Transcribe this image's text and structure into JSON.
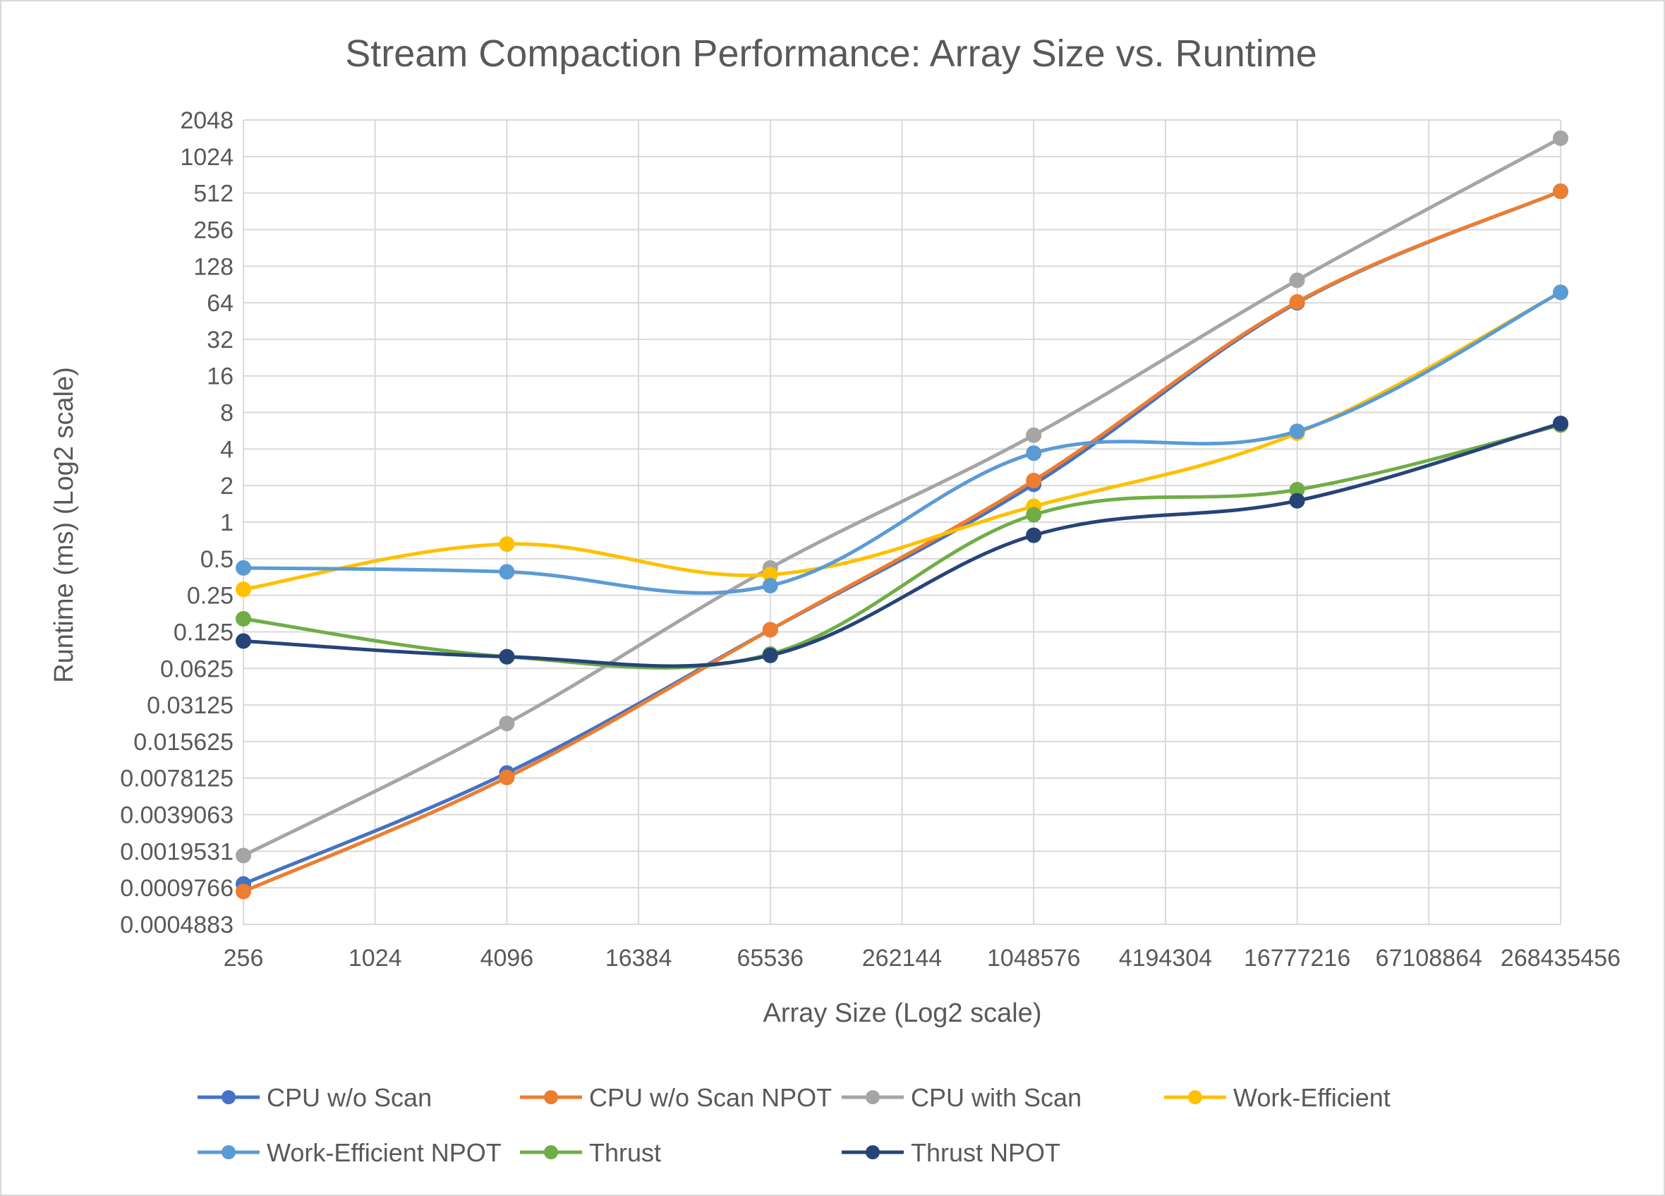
{
  "chart_data": {
    "type": "line",
    "title": "Stream Compaction Performance: Array Size vs. Runtime",
    "xlabel": "Array Size (Log2 scale)",
    "ylabel": "Runtime (ms) (Log2 scale)",
    "x_scale": "log2",
    "y_scale": "log2",
    "x_ticks": [
      "256",
      "1024",
      "4096",
      "16384",
      "65536",
      "262144",
      "1048576",
      "4194304",
      "16777216",
      "67108864",
      "268435456"
    ],
    "y_ticks": [
      "0.0004883",
      "0.0009766",
      "0.0019531",
      "0.0039063",
      "0.0078125",
      "0.015625",
      "0.03125",
      "0.0625",
      "0.125",
      "0.25",
      "0.5",
      "1",
      "2",
      "4",
      "8",
      "16",
      "32",
      "64",
      "128",
      "256",
      "512",
      "1024",
      "2048"
    ],
    "xlim": [
      256,
      268435456
    ],
    "ylim": [
      0.00048828125,
      2048
    ],
    "grid": true,
    "legend_position": "bottom",
    "x": [
      256,
      4096,
      65536,
      1048576,
      16777216,
      268435456
    ],
    "series": [
      {
        "name": "CPU w/o Scan",
        "color": "#4472C4",
        "values": [
          0.00105,
          0.0086,
          0.13,
          2.05,
          64,
          530
        ]
      },
      {
        "name": "CPU w/o Scan NPOT",
        "color": "#ED7D31",
        "values": [
          0.00091,
          0.0079,
          0.13,
          2.2,
          65,
          530
        ]
      },
      {
        "name": "CPU with Scan",
        "color": "#A5A5A5",
        "values": [
          0.0018,
          0.022,
          0.42,
          5.2,
          98,
          1450
        ]
      },
      {
        "name": "Work-Efficient",
        "color": "#FFC000",
        "values": [
          0.28,
          0.66,
          0.37,
          1.35,
          5.4,
          78
        ]
      },
      {
        "name": "Work-Efficient NPOT",
        "color": "#5B9BD5",
        "values": [
          0.42,
          0.39,
          0.3,
          3.7,
          5.6,
          78
        ]
      },
      {
        "name": "Thrust",
        "color": "#70AD47",
        "values": [
          0.16,
          0.078,
          0.082,
          1.15,
          1.85,
          6.3
        ]
      },
      {
        "name": "Thrust NPOT",
        "color": "#264478",
        "values": [
          0.105,
          0.078,
          0.08,
          0.78,
          1.5,
          6.5
        ]
      }
    ]
  }
}
